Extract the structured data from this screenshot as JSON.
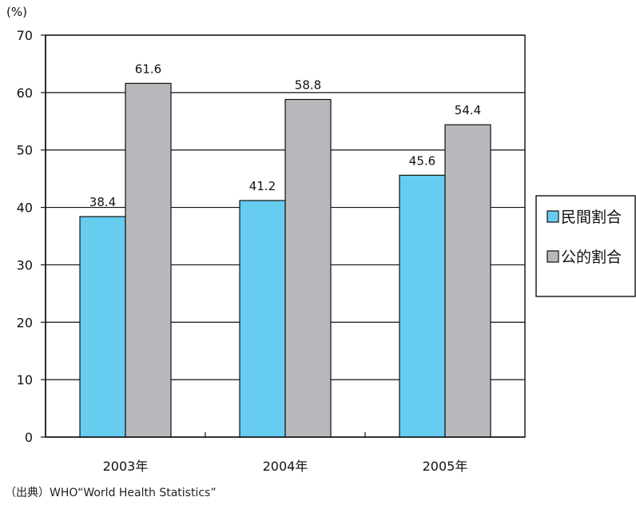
{
  "chart_data": {
    "type": "bar",
    "unit_label": "(%)",
    "categories": [
      "2003年",
      "2004年",
      "2005年"
    ],
    "series": [
      {
        "name": "民間割合",
        "values": [
          38.4,
          41.2,
          45.6
        ],
        "labels": [
          "38.4",
          "41.2",
          "45.6"
        ],
        "color": "#66ccf0"
      },
      {
        "name": "公的割合",
        "values": [
          61.6,
          58.8,
          54.4
        ],
        "labels": [
          "61.6",
          "58.8",
          "54.4"
        ],
        "color": "#b8b9bd"
      }
    ],
    "ylim": [
      0,
      70
    ],
    "yticks": [
      0,
      10,
      20,
      30,
      40,
      50,
      60,
      70
    ],
    "ytick_labels": [
      "0",
      "10",
      "20",
      "30",
      "40",
      "50",
      "60",
      "70"
    ],
    "grid": true,
    "legend_position": "right"
  },
  "source_text": "（出典）WHO“World Health Statistics”"
}
